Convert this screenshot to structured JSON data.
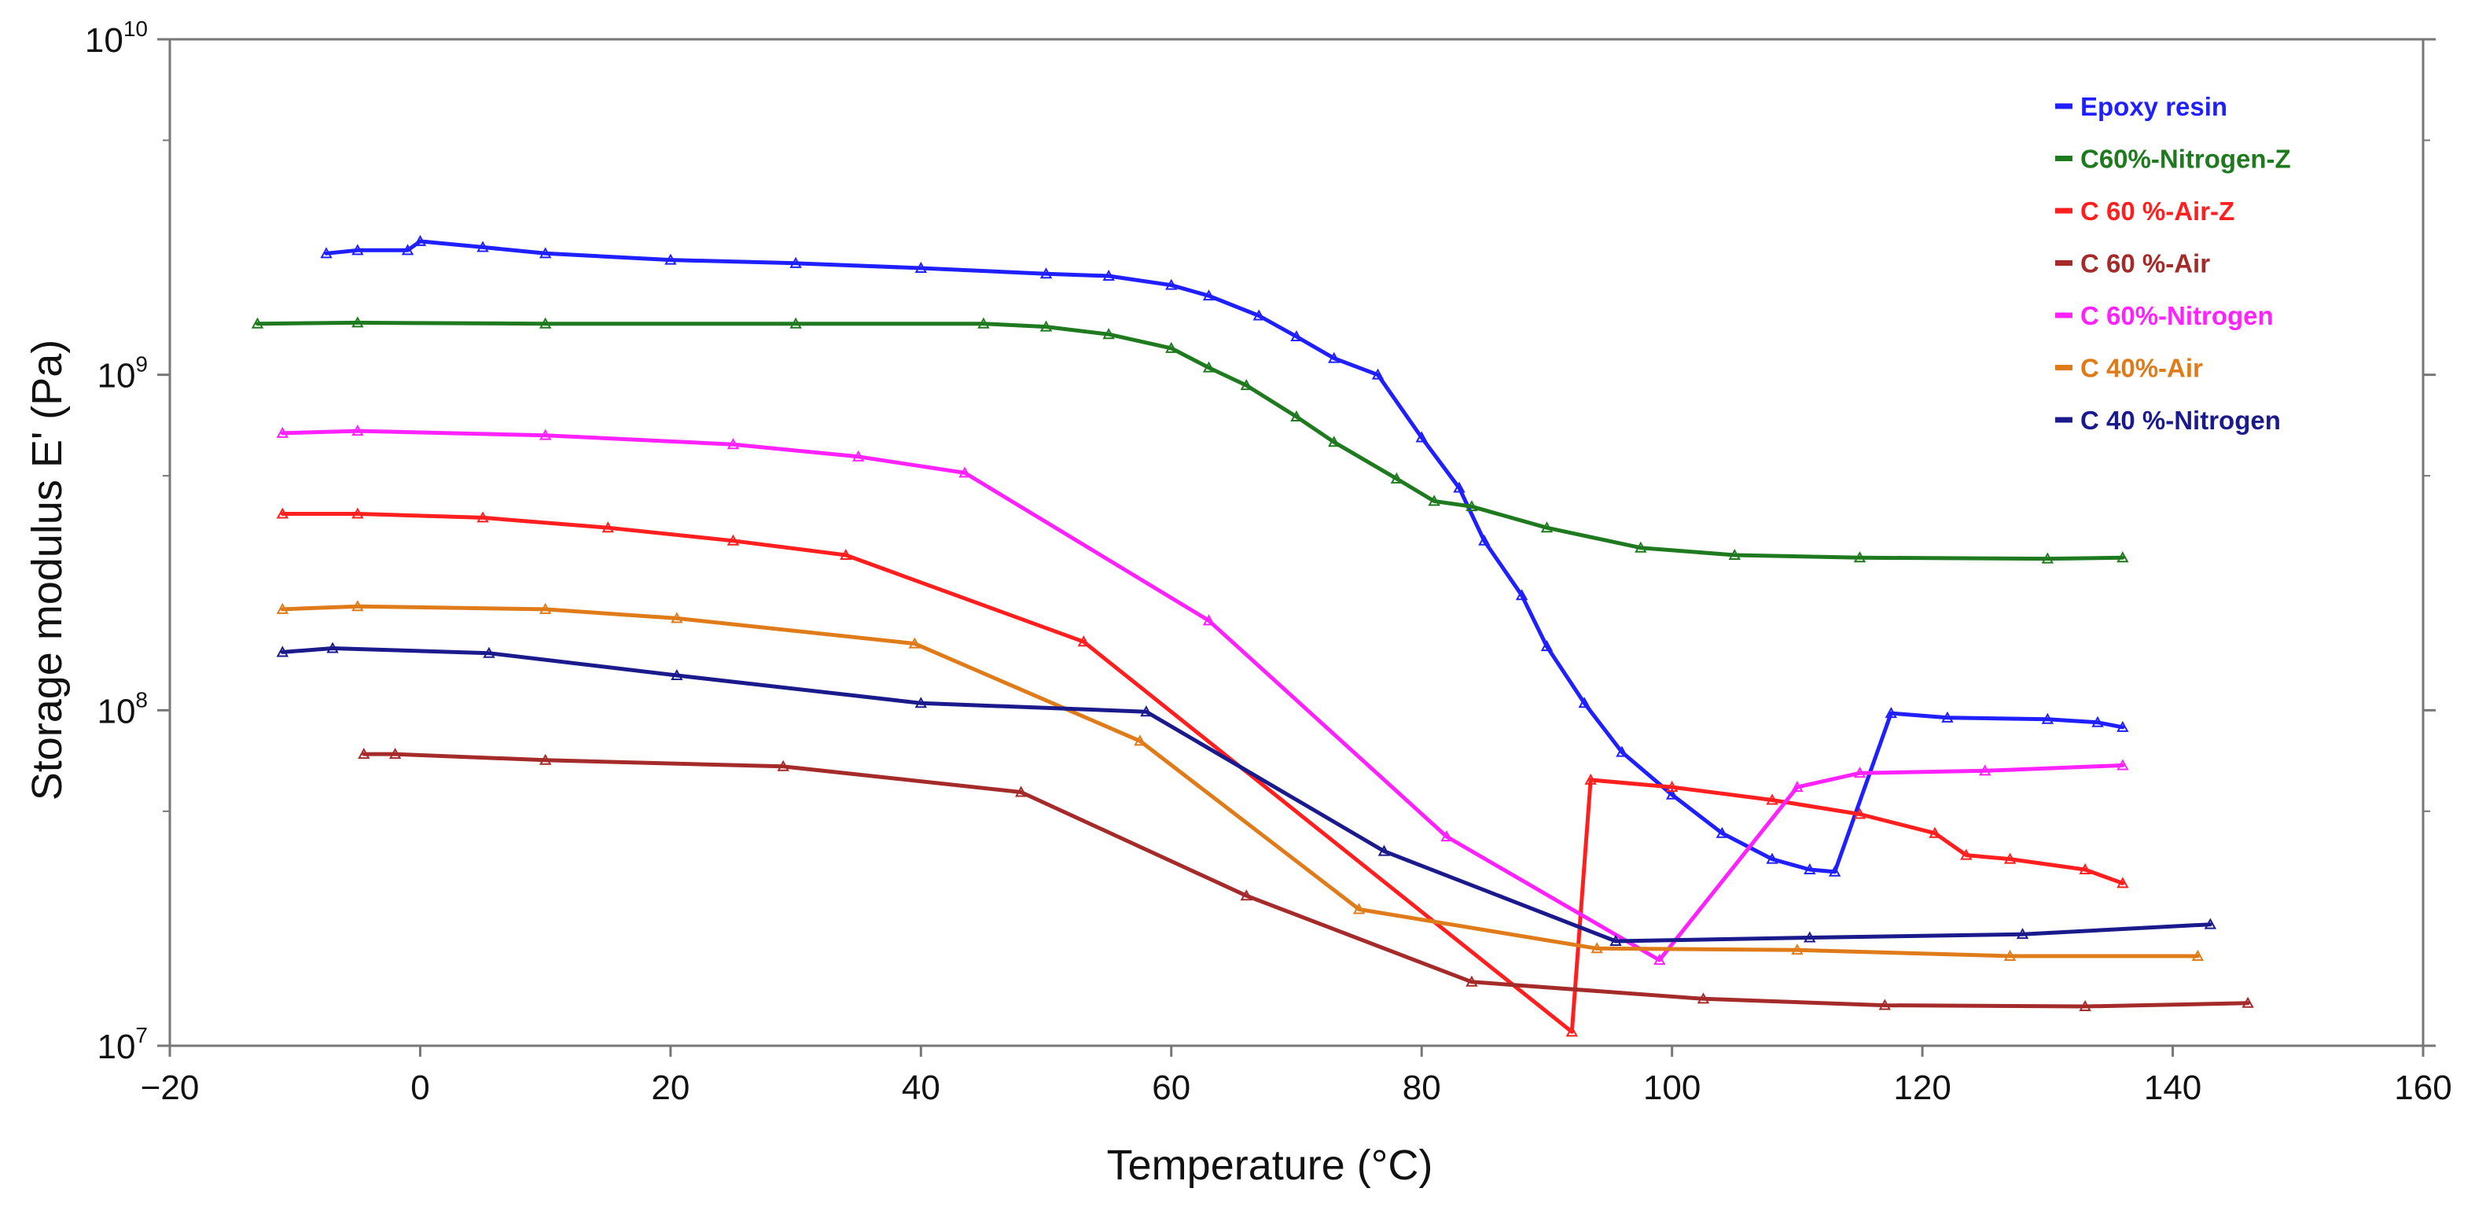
{
  "chart_data": {
    "type": "line",
    "title": "",
    "xlabel": "Temperature (°C)",
    "ylabel": "Storage modulus E' (Pa)",
    "xlim": [
      -20,
      160
    ],
    "ylim": [
      10000000,
      10000000000
    ],
    "yscale": "log",
    "x_ticks": [
      -20,
      0,
      20,
      40,
      60,
      80,
      100,
      120,
      140,
      160
    ],
    "x_tick_labels": [
      "−20",
      "0",
      "20",
      "40",
      "60",
      "80",
      "100",
      "120",
      "140",
      "160"
    ],
    "y_tick_labels": [
      {
        "base": "10",
        "exp": "10",
        "value": 10000000000
      },
      {
        "base": "10",
        "exp": "9",
        "value": 1000000000
      },
      {
        "base": "10",
        "exp": "8",
        "value": 100000000
      },
      {
        "base": "10",
        "exp": "7",
        "value": 10000000
      }
    ],
    "legend_position": "top-right",
    "series": [
      {
        "name": "Epoxy resin",
        "color": "#1f1fff",
        "points": [
          [
            -7.5,
            2300000000.0
          ],
          [
            -5,
            2350000000.0
          ],
          [
            -1,
            2350000000.0
          ],
          [
            0,
            2500000000.0
          ],
          [
            5,
            2400000000.0
          ],
          [
            10,
            2300000000.0
          ],
          [
            20,
            2200000000.0
          ],
          [
            30,
            2150000000.0
          ],
          [
            40,
            2080000000.0
          ],
          [
            50,
            2000000000.0
          ],
          [
            55,
            1970000000.0
          ],
          [
            60,
            1850000000.0
          ],
          [
            63,
            1720000000.0
          ],
          [
            67,
            1500000000.0
          ],
          [
            70,
            1300000000.0
          ],
          [
            73,
            1120000000.0
          ],
          [
            76.5,
            1000000000.0
          ],
          [
            80,
            650000000.0
          ],
          [
            83,
            460000000.0
          ],
          [
            85,
            320000000.0
          ],
          [
            88,
            220000000.0
          ],
          [
            90,
            155000000.0
          ],
          [
            93,
            105000000.0
          ],
          [
            96,
            75000000.0
          ],
          [
            100,
            56000000.0
          ],
          [
            104,
            43000000.0
          ],
          [
            108,
            36000000.0
          ],
          [
            111,
            33500000.0
          ],
          [
            113,
            33000000.0
          ],
          [
            117.5,
            98000000.0
          ],
          [
            122,
            95000000.0
          ],
          [
            130,
            94000000.0
          ],
          [
            134,
            92000000.0
          ],
          [
            136,
            89000000.0
          ]
        ]
      },
      {
        "name": "C60%-Nitrogen-Z",
        "color": "#1f7a1f",
        "points": [
          [
            -13,
            1420000000.0
          ],
          [
            -5,
            1430000000.0
          ],
          [
            10,
            1420000000.0
          ],
          [
            30,
            1420000000.0
          ],
          [
            45,
            1420000000.0
          ],
          [
            50,
            1390000000.0
          ],
          [
            55,
            1320000000.0
          ],
          [
            60,
            1200000000.0
          ],
          [
            63,
            1050000000.0
          ],
          [
            66,
            930000000.0
          ],
          [
            70,
            750000000.0
          ],
          [
            73,
            630000000.0
          ],
          [
            78,
            490000000.0
          ],
          [
            81,
            420000000.0
          ],
          [
            84,
            405000000.0
          ],
          [
            90,
            350000000.0
          ],
          [
            97.5,
            305000000.0
          ],
          [
            105,
            290000000.0
          ],
          [
            115,
            285000000.0
          ],
          [
            130,
            283000000.0
          ],
          [
            136,
            285000000.0
          ]
        ]
      },
      {
        "name": "C 60 %-Air-Z",
        "color": "#ff1f1f",
        "points": [
          [
            -11,
            385000000.0
          ],
          [
            -5,
            385000000.0
          ],
          [
            5,
            375000000.0
          ],
          [
            15,
            350000000.0
          ],
          [
            25,
            320000000.0
          ],
          [
            34,
            290000000.0
          ],
          [
            53,
            160000000.0
          ],
          [
            92,
            11000000.0
          ],
          [
            93.5,
            62000000.0
          ],
          [
            100,
            59000000.0
          ],
          [
            108,
            54000000.0
          ],
          [
            115,
            49000000.0
          ],
          [
            121,
            43000000.0
          ],
          [
            123.5,
            37000000.0
          ],
          [
            127,
            36000000.0
          ],
          [
            133,
            33500000.0
          ],
          [
            136,
            30500000.0
          ]
        ]
      },
      {
        "name": "C 60 %-Air",
        "color": "#a52a2a",
        "points": [
          [
            -4.5,
            74000000.0
          ],
          [
            -2,
            74000000.0
          ],
          [
            10,
            71000000.0
          ],
          [
            29,
            68000000.0
          ],
          [
            48,
            57000000.0
          ],
          [
            66,
            28000000.0
          ],
          [
            84,
            15500000.0
          ],
          [
            102.5,
            13800000.0
          ],
          [
            117,
            13200000.0
          ],
          [
            133,
            13100000.0
          ],
          [
            146,
            13400000.0
          ]
        ]
      },
      {
        "name": "C 60%-Nitrogen",
        "color": "#ff22ff",
        "points": [
          [
            -11,
            670000000.0
          ],
          [
            -5,
            680000000.0
          ],
          [
            10,
            660000000.0
          ],
          [
            25,
            620000000.0
          ],
          [
            35,
            570000000.0
          ],
          [
            43.5,
            510000000.0
          ],
          [
            63,
            185000000.0
          ],
          [
            82,
            42000000.0
          ],
          [
            99,
            18000000.0
          ],
          [
            110,
            59000000.0
          ],
          [
            115,
            65000000.0
          ],
          [
            125,
            66000000.0
          ],
          [
            136,
            68500000.0
          ]
        ]
      },
      {
        "name": "C 40%-Air",
        "color": "#e07b1a",
        "points": [
          [
            -11,
            200000000.0
          ],
          [
            -5,
            204000000.0
          ],
          [
            10,
            200000000.0
          ],
          [
            20.5,
            188000000.0
          ],
          [
            39.5,
            158000000.0
          ],
          [
            57.5,
            81000000.0
          ],
          [
            75,
            25500000.0
          ],
          [
            94,
            19500000.0
          ],
          [
            110,
            19300000.0
          ],
          [
            127,
            18500000.0
          ],
          [
            142,
            18500000.0
          ]
        ]
      },
      {
        "name": "C 40 %-Nitrogen",
        "color": "#1a1a8c",
        "points": [
          [
            -11,
            149000000.0
          ],
          [
            -7,
            153000000.0
          ],
          [
            5.5,
            148000000.0
          ],
          [
            20.5,
            127000000.0
          ],
          [
            40,
            105000000.0
          ],
          [
            58,
            99000000.0
          ],
          [
            77,
            38000000.0
          ],
          [
            95.5,
            20500000.0
          ],
          [
            111,
            21000000.0
          ],
          [
            128,
            21500000.0
          ],
          [
            143,
            23000000.0
          ]
        ]
      }
    ]
  }
}
